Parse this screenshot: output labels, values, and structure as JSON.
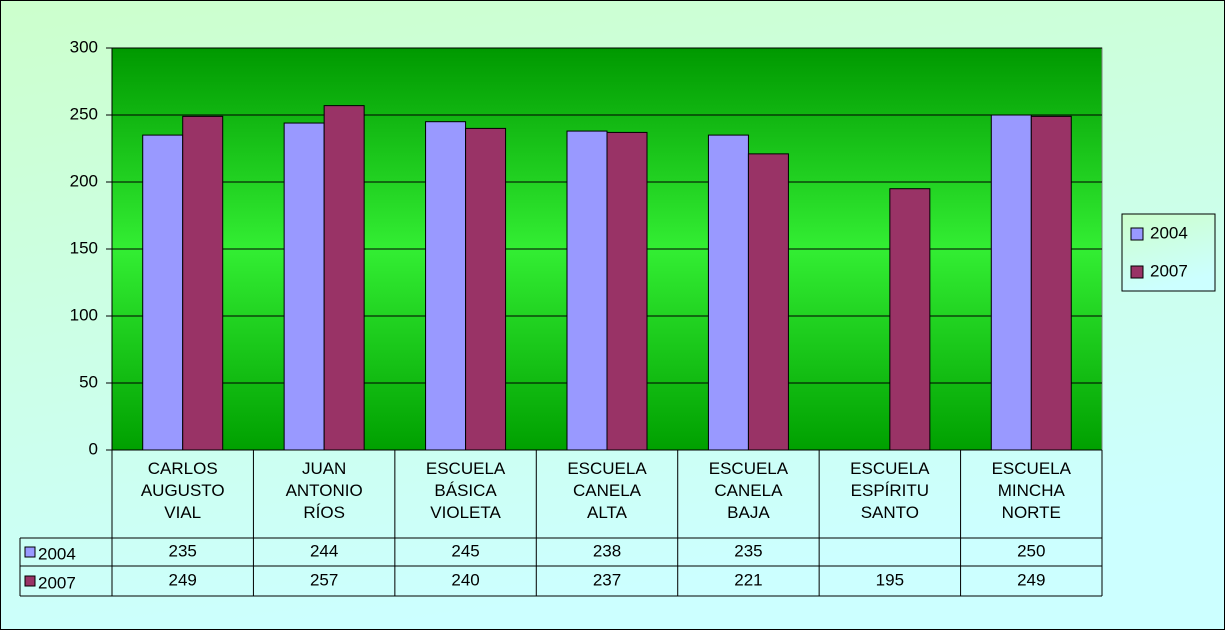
{
  "chart_data": {
    "type": "bar",
    "categories": [
      "CARLOS AUGUSTO VIAL",
      "JUAN ANTONIO RÍOS",
      "ESCUELA BÁSICA VIOLETA",
      "ESCUELA CANELA ALTA",
      "ESCUELA CANELA BAJA",
      "ESCUELA ESPÍRITU SANTO",
      "ESCUELA MINCHA NORTE"
    ],
    "series": [
      {
        "name": "2004",
        "color": "#9999ff",
        "values": [
          235,
          244,
          245,
          238,
          235,
          null,
          250
        ]
      },
      {
        "name": "2007",
        "color": "#993366",
        "values": [
          249,
          257,
          240,
          237,
          221,
          195,
          249
        ]
      }
    ],
    "ylim": [
      0,
      300
    ],
    "yticks": [
      0,
      50,
      100,
      150,
      200,
      250,
      300
    ],
    "grid": true,
    "legend": "right",
    "data_table": true
  }
}
